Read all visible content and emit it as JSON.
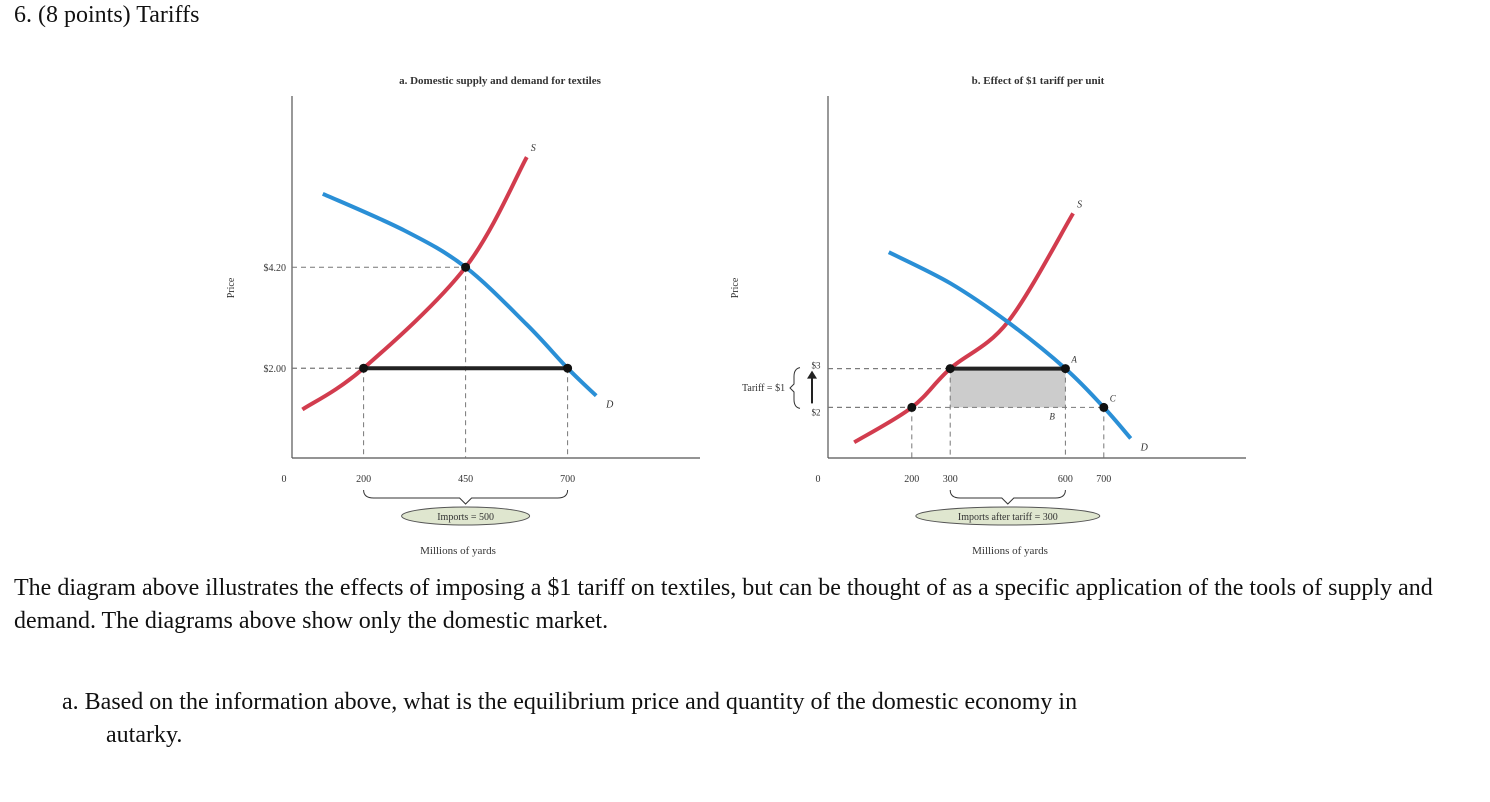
{
  "heading": "6. (8 points) Tariffs",
  "paragraph": "The diagram above illustrates the effects of imposing a $1 tariff on textiles, but can be thought of as a specific application of the tools of supply and demand. The diagrams above show only the domestic market.",
  "question": {
    "label": "a.",
    "text_line1": "Based on the information above, what is the equilibrium price and quantity of the domestic economy in",
    "text_line2": "autarky."
  },
  "colors": {
    "supply": "#d23c4e",
    "demand": "#2a8fd6",
    "imports_bar": "#222222",
    "tariff_area": "#cccccc",
    "dashed": "#777777"
  },
  "chart_data": [
    {
      "type": "line",
      "title": "a. Domestic supply and demand for textiles",
      "ylabel": "Price",
      "xlabel": "Millions of yards",
      "origin_label": "0",
      "x_ticks": [
        {
          "value": 200,
          "label": "200"
        },
        {
          "value": 450,
          "label": "450"
        },
        {
          "value": 700,
          "label": "700"
        }
      ],
      "y_ticks": [
        {
          "value": 2.0,
          "label": "$2.00"
        },
        {
          "value": 4.2,
          "label": "$4.20"
        }
      ],
      "xlim": [
        0,
        1000
      ],
      "ylim": [
        0,
        8
      ],
      "series": [
        {
          "name": "S",
          "points": [
            [
              50,
              1.1
            ],
            [
              200,
              2.0
            ],
            [
              450,
              4.2
            ],
            [
              600,
              6.6
            ]
          ]
        },
        {
          "name": "D",
          "points": [
            [
              100,
              5.8
            ],
            [
              300,
              5.0
            ],
            [
              450,
              4.2
            ],
            [
              600,
              2.95
            ],
            [
              700,
              2.0
            ],
            [
              770,
              1.4
            ]
          ]
        }
      ],
      "markers": [
        [
          200,
          2.0
        ],
        [
          450,
          4.2
        ],
        [
          700,
          2.0
        ]
      ],
      "imports_segment": {
        "from": 200,
        "to": 700,
        "price": 2.0
      },
      "imports_label": "Imports = 500"
    },
    {
      "type": "line",
      "title": "b. Effect of $1 tariff per unit",
      "ylabel": "Price",
      "xlabel": "Millions of yards",
      "origin_label": "0",
      "tariff_label": "Tariff = $1",
      "x_ticks": [
        {
          "value": 200,
          "label": "200"
        },
        {
          "value": 300,
          "label": "300"
        },
        {
          "value": 600,
          "label": "600"
        },
        {
          "value": 700,
          "label": "700"
        }
      ],
      "y_ticks": [
        {
          "value": 2,
          "label": "$2"
        },
        {
          "value": 3,
          "label": "$3"
        }
      ],
      "xlim": [
        0,
        1000
      ],
      "ylim": [
        0,
        8
      ],
      "series": [
        {
          "name": "S",
          "points": [
            [
              50,
              1.1
            ],
            [
              200,
              2.0
            ],
            [
              300,
              3.0
            ],
            [
              450,
              4.2
            ],
            [
              620,
              7.0
            ]
          ]
        },
        {
          "name": "D",
          "points": [
            [
              140,
              6.0
            ],
            [
              300,
              5.2
            ],
            [
              450,
              4.2
            ],
            [
              600,
              3.0
            ],
            [
              700,
              2.0
            ],
            [
              770,
              1.2
            ]
          ]
        }
      ],
      "markers": [
        [
          200,
          2.0
        ],
        [
          300,
          3.0
        ],
        [
          600,
          3.0
        ],
        [
          700,
          2.0
        ]
      ],
      "point_labels": [
        {
          "name": "A",
          "x": 600,
          "y": 3.0
        },
        {
          "name": "B",
          "x": 600,
          "y": 2.0
        },
        {
          "name": "C",
          "x": 700,
          "y": 2.0
        }
      ],
      "imports_segment": {
        "from": 300,
        "to": 600,
        "price": 3.0
      },
      "tariff_area": {
        "x_from": 300,
        "x_to": 600,
        "y_from": 2,
        "y_to": 3
      },
      "imports_label": "Imports after tariff = 300"
    }
  ]
}
